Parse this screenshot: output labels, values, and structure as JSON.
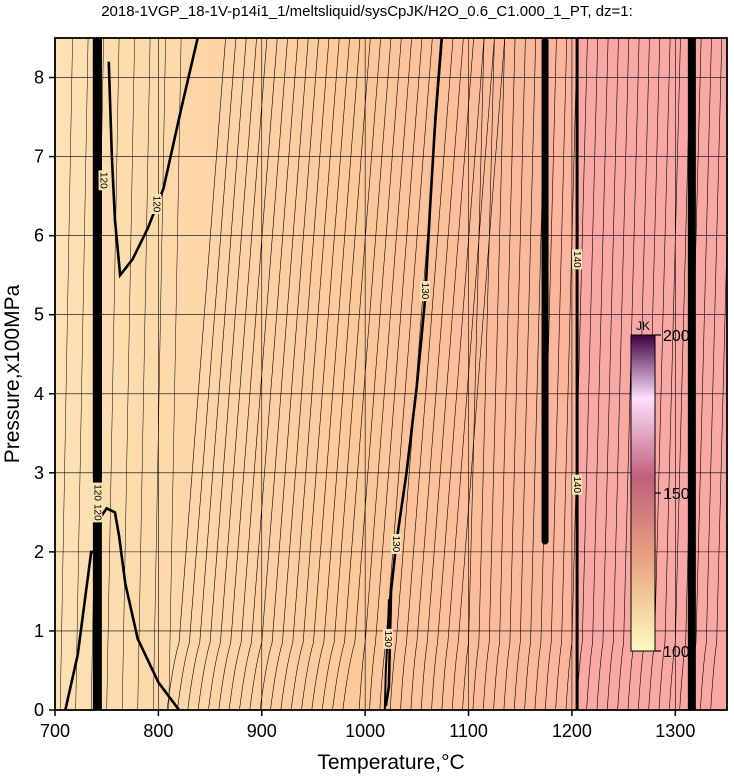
{
  "chart_data": {
    "type": "heatmap",
    "title": "2018-1VGP_18-1V-p14i1_1/meltsliquid/sysCpJK/H2O_0.6_C1.000_1_PT, dz=1:",
    "xlabel": "Temperature,°C",
    "ylabel": "Pressure,x100MPa",
    "xlim": [
      700,
      1350
    ],
    "ylim": [
      0,
      8.5
    ],
    "xticks": [
      "700",
      "800",
      "900",
      "1000",
      "1100",
      "1200",
      "1300"
    ],
    "yticks": [
      "0",
      "1",
      "2",
      "3",
      "4",
      "5",
      "6",
      "7",
      "8"
    ],
    "grid": true,
    "colorbar": {
      "unit": "JK",
      "min": 100,
      "max": 200,
      "ticks": [
        "100",
        "150",
        "200"
      ],
      "stops": [
        "#fcfcc0",
        "#e8a080",
        "#c0607c",
        "#fce0fc",
        "#400040"
      ]
    },
    "field_colors": [
      "#fde2b4",
      "#fdc89a",
      "#fbb89a",
      "#faa8a0"
    ],
    "contour_labels": [
      {
        "text": "120",
        "x": 747,
        "y": 6.7
      },
      {
        "text": "120",
        "x": 798,
        "y": 6.4
      },
      {
        "text": "120",
        "x": 741,
        "y": 2.75
      },
      {
        "text": "120",
        "x": 741,
        "y": 2.5
      },
      {
        "text": "130",
        "x": 1058,
        "y": 5.3
      },
      {
        "text": "130",
        "x": 1030,
        "y": 2.1
      },
      {
        "text": "130",
        "x": 1022,
        "y": 0.9
      },
      {
        "text": "140",
        "x": 1205,
        "y": 5.7
      },
      {
        "text": "140",
        "x": 1205,
        "y": 2.85
      }
    ]
  }
}
